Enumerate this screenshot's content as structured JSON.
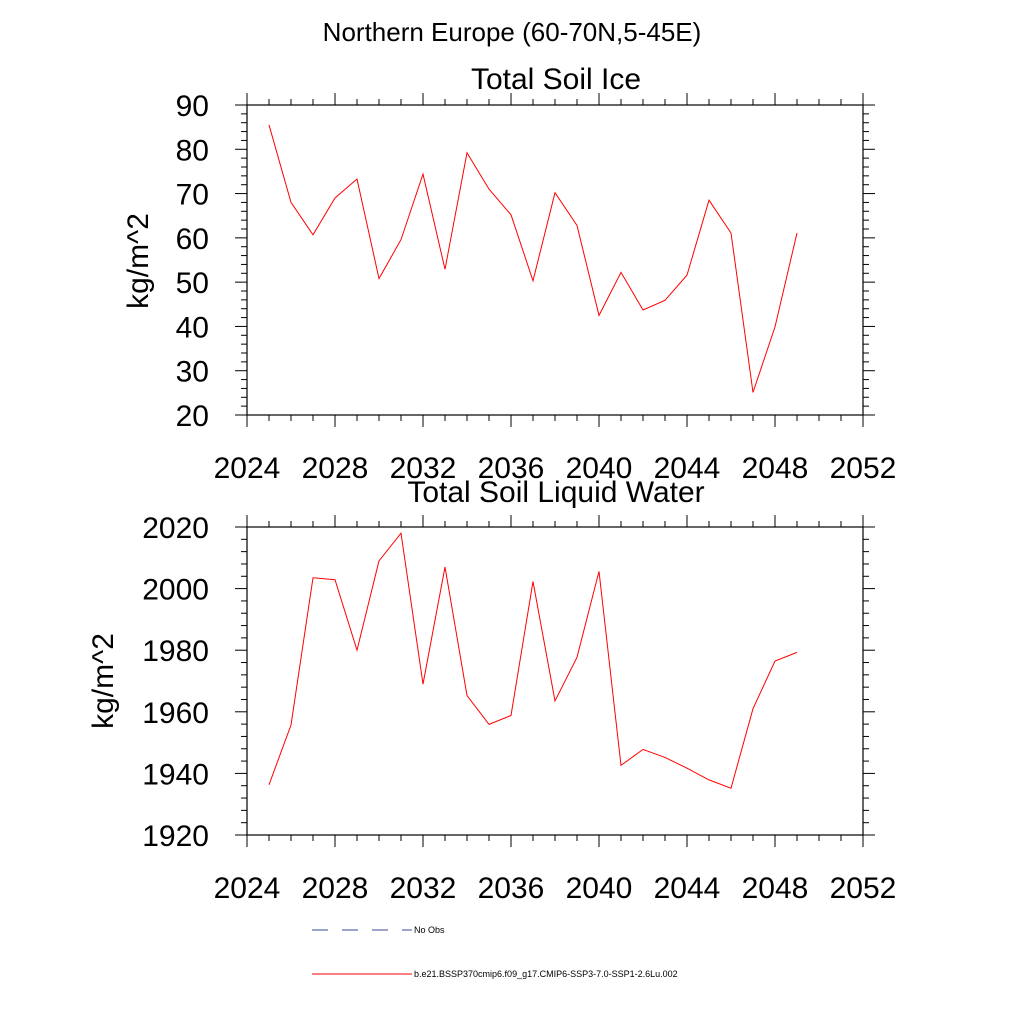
{
  "suptitle": "Northern Europe (60-70N,5-45E)",
  "series_color": "#ff0000",
  "legend": {
    "no_obs_label": "No Obs",
    "no_obs_color": "#3b4b9c",
    "model_label": "b.e21.BSSP370cmip6.f09_g17.CMIP6-SSP3-7.0-SSP1-2.6Lu.002",
    "model_color": "#ff0000"
  },
  "chart_data": [
    {
      "type": "line",
      "title": "Total Soil Ice",
      "ylabel": "kg/m^2",
      "xlabel": "",
      "xlim": [
        2024,
        2052
      ],
      "ylim": [
        20,
        90
      ],
      "xticks": [
        "2024",
        "2028",
        "2032",
        "2036",
        "2040",
        "2044",
        "2048",
        "2052"
      ],
      "yticks": [
        "20",
        "30",
        "40",
        "50",
        "60",
        "70",
        "80",
        "90"
      ],
      "x": [
        2025,
        2026,
        2027,
        2028,
        2029,
        2030,
        2031,
        2032,
        2033,
        2034,
        2035,
        2036,
        2037,
        2038,
        2039,
        2040,
        2041,
        2042,
        2043,
        2044,
        2045,
        2046,
        2047,
        2048,
        2049
      ],
      "y": [
        85.5,
        68.0,
        60.7,
        69.0,
        73.3,
        50.8,
        59.6,
        74.4,
        52.9,
        79.2,
        71.0,
        65.2,
        50.3,
        70.2,
        62.8,
        42.5,
        52.2,
        43.7,
        45.9,
        51.6,
        68.5,
        61.1,
        25.1,
        39.9,
        61.1
      ]
    },
    {
      "type": "line",
      "title": "Total Soil Liquid Water",
      "ylabel": "kg/m^2",
      "xlabel": "",
      "xlim": [
        2024,
        2052
      ],
      "ylim": [
        1920,
        2020
      ],
      "xticks": [
        "2024",
        "2028",
        "2032",
        "2036",
        "2040",
        "2044",
        "2048",
        "2052"
      ],
      "yticks": [
        "1920",
        "1940",
        "1960",
        "1980",
        "2000",
        "2020"
      ],
      "x": [
        2025,
        2026,
        2027,
        2028,
        2029,
        2030,
        2031,
        2032,
        2033,
        2034,
        2035,
        2036,
        2037,
        2038,
        2039,
        2040,
        2041,
        2042,
        2043,
        2044,
        2045,
        2046,
        2047,
        2048,
        2049
      ],
      "y": [
        1936.3,
        1955.7,
        2003.5,
        2002.9,
        1980.0,
        2009.0,
        2018.0,
        1969.0,
        2007.0,
        1965.3,
        1955.9,
        1958.8,
        2002.3,
        1963.5,
        1977.7,
        2005.6,
        1942.6,
        1947.8,
        1945.2,
        1941.7,
        1937.9,
        1935.2,
        1961.0,
        1976.5,
        1979.3
      ]
    }
  ]
}
